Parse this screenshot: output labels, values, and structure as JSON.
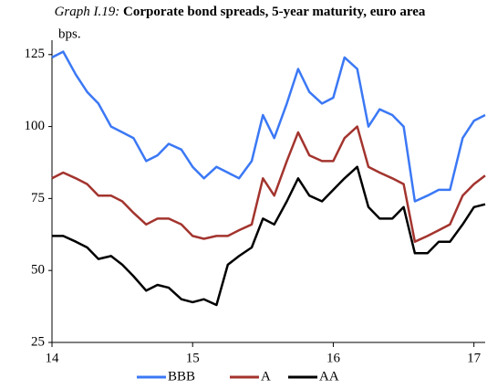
{
  "chart_data": {
    "type": "line",
    "title_prefix": "Graph I.19:",
    "title": "Corporate bond spreads, 5-year maturity, euro area",
    "y_unit_label": "bps.",
    "x": [
      14.0,
      14.08,
      14.17,
      14.25,
      14.33,
      14.42,
      14.5,
      14.58,
      14.67,
      14.75,
      14.83,
      14.92,
      15.0,
      15.08,
      15.17,
      15.25,
      15.33,
      15.42,
      15.5,
      15.58,
      15.67,
      15.75,
      15.83,
      15.92,
      16.0,
      16.08,
      16.17,
      16.25,
      16.33,
      16.42,
      16.5,
      16.58,
      16.67,
      16.75,
      16.83,
      16.92,
      17.0,
      17.08
    ],
    "series": [
      {
        "name": "BBB",
        "color": "#3b78f5",
        "values": [
          124,
          126,
          118,
          112,
          108,
          100,
          98,
          96,
          88,
          90,
          94,
          92,
          86,
          82,
          86,
          84,
          82,
          88,
          104,
          96,
          108,
          120,
          112,
          108,
          110,
          124,
          120,
          100,
          106,
          104,
          100,
          74,
          76,
          78,
          78,
          96,
          102,
          104
        ]
      },
      {
        "name": "A",
        "color": "#a3342e",
        "values": [
          82,
          84,
          82,
          80,
          76,
          76,
          74,
          70,
          66,
          68,
          68,
          66,
          62,
          61,
          62,
          62,
          64,
          66,
          82,
          76,
          88,
          98,
          90,
          88,
          88,
          96,
          100,
          86,
          84,
          82,
          80,
          60,
          62,
          64,
          66,
          76,
          80,
          83
        ]
      },
      {
        "name": "AA",
        "color": "#000000",
        "values": [
          62,
          62,
          60,
          58,
          54,
          55,
          52,
          48,
          43,
          45,
          44,
          40,
          39,
          40,
          38,
          52,
          55,
          58,
          68,
          66,
          74,
          82,
          76,
          74,
          78,
          82,
          86,
          72,
          68,
          68,
          72,
          56,
          56,
          60,
          60,
          66,
          72,
          73
        ]
      }
    ],
    "xlim": [
      14,
      17.08
    ],
    "xticks": [
      14,
      15,
      16,
      17
    ],
    "ylim": [
      25,
      130
    ],
    "yticks": [
      25,
      50,
      75,
      100,
      125
    ]
  }
}
